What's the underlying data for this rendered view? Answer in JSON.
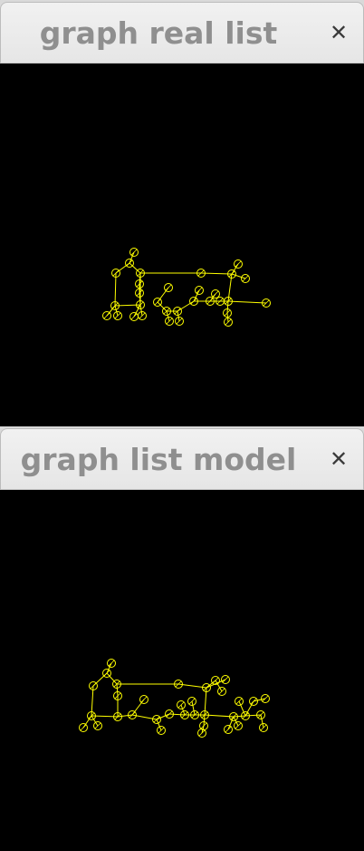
{
  "windows": [
    {
      "title": "graph real list",
      "close_glyph": "✕"
    },
    {
      "title": "graph list model",
      "close_glyph": "✕"
    }
  ],
  "graph_color": "#ffff00",
  "canvas_color": "#000000",
  "icons": {
    "close": "close-icon"
  }
}
